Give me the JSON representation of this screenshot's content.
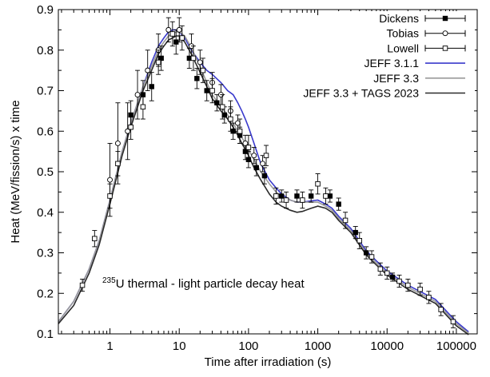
{
  "chart_data": {
    "type": "scatter",
    "xlabel": "Time after irradiation (s)",
    "ylabel": "Heat (MeV/fission/s) x time",
    "x_scale": "log",
    "xlim": [
      0.18,
      200000
    ],
    "ylim": [
      0.1,
      0.9
    ],
    "x_ticks": [
      1,
      10,
      100,
      1000,
      10000,
      100000
    ],
    "x_tick_labels": [
      "1",
      "10",
      "100",
      "1000",
      "10000",
      "100000"
    ],
    "y_ticks": [
      0.1,
      0.2,
      0.3,
      0.4,
      0.5,
      0.6,
      0.7,
      0.8,
      0.9
    ],
    "y_tick_labels": [
      "0.1",
      "0.2",
      "0.3",
      "0.4",
      "0.5",
      "0.6",
      "0.7",
      "0.8",
      "0.9"
    ],
    "grid": false,
    "legend_position": "top-right",
    "annotation": {
      "superscript": "235",
      "text": "U thermal  - light particle decay heat"
    },
    "colors": {
      "jeff311": "#3a3acc",
      "jeff33": "#9a9a9a",
      "jeff33_tags": "#2b2b2b",
      "markers": "#000000"
    },
    "series": [
      {
        "name": "Dickens",
        "kind": "points",
        "marker": "filled-square",
        "points": [
          {
            "x": 2.0,
            "y": 0.64,
            "err": 0.035
          },
          {
            "x": 3.0,
            "y": 0.69,
            "err": 0.035
          },
          {
            "x": 4.0,
            "y": 0.71,
            "err": 0.035
          },
          {
            "x": 5.5,
            "y": 0.78,
            "err": 0.03
          },
          {
            "x": 9.0,
            "y": 0.82,
            "err": 0.03
          },
          {
            "x": 14,
            "y": 0.78,
            "err": 0.025
          },
          {
            "x": 18,
            "y": 0.73,
            "err": 0.025
          },
          {
            "x": 25,
            "y": 0.7,
            "err": 0.025
          },
          {
            "x": 35,
            "y": 0.67,
            "err": 0.02
          },
          {
            "x": 45,
            "y": 0.64,
            "err": 0.02
          },
          {
            "x": 60,
            "y": 0.6,
            "err": 0.02
          },
          {
            "x": 75,
            "y": 0.59,
            "err": 0.02
          },
          {
            "x": 90,
            "y": 0.55,
            "err": 0.02
          },
          {
            "x": 100,
            "y": 0.53,
            "err": 0.02
          },
          {
            "x": 130,
            "y": 0.51,
            "err": 0.02
          },
          {
            "x": 170,
            "y": 0.49,
            "err": 0.02
          },
          {
            "x": 300,
            "y": 0.44,
            "err": 0.015
          },
          {
            "x": 500,
            "y": 0.44,
            "err": 0.015
          },
          {
            "x": 800,
            "y": 0.44,
            "err": 0.015
          },
          {
            "x": 1500,
            "y": 0.44,
            "err": 0.015
          },
          {
            "x": 2000,
            "y": 0.42,
            "err": 0.015
          },
          {
            "x": 3500,
            "y": 0.35,
            "err": 0.015
          },
          {
            "x": 5000,
            "y": 0.3,
            "err": 0.015
          },
          {
            "x": 12000,
            "y": 0.24,
            "err": 0.01
          }
        ]
      },
      {
        "name": "Tobias",
        "kind": "points",
        "marker": "open-circle",
        "points": [
          {
            "x": 1.0,
            "y": 0.48,
            "err": 0.09
          },
          {
            "x": 1.3,
            "y": 0.57,
            "err": 0.1
          },
          {
            "x": 1.8,
            "y": 0.6,
            "err": 0.07
          },
          {
            "x": 2.5,
            "y": 0.69,
            "err": 0.06
          },
          {
            "x": 3.5,
            "y": 0.75,
            "err": 0.05
          },
          {
            "x": 5.0,
            "y": 0.8,
            "err": 0.04
          },
          {
            "x": 7.0,
            "y": 0.85,
            "err": 0.03
          },
          {
            "x": 10,
            "y": 0.85,
            "err": 0.03
          },
          {
            "x": 15,
            "y": 0.81,
            "err": 0.03
          },
          {
            "x": 20,
            "y": 0.77,
            "err": 0.03
          },
          {
            "x": 30,
            "y": 0.72,
            "err": 0.025
          },
          {
            "x": 40,
            "y": 0.69,
            "err": 0.025
          },
          {
            "x": 55,
            "y": 0.65,
            "err": 0.025
          },
          {
            "x": 70,
            "y": 0.62,
            "err": 0.02
          },
          {
            "x": 90,
            "y": 0.57,
            "err": 0.02
          },
          {
            "x": 120,
            "y": 0.54,
            "err": 0.02
          },
          {
            "x": 160,
            "y": 0.52,
            "err": 0.02
          }
        ]
      },
      {
        "name": "Lowell",
        "kind": "points",
        "marker": "open-square",
        "points": [
          {
            "x": 0.4,
            "y": 0.22,
            "err": 0.015
          },
          {
            "x": 0.6,
            "y": 0.335,
            "err": 0.02
          },
          {
            "x": 1.0,
            "y": 0.44,
            "err": 0.03
          },
          {
            "x": 1.3,
            "y": 0.52,
            "err": 0.03
          },
          {
            "x": 2.0,
            "y": 0.61,
            "err": 0.03
          },
          {
            "x": 3.0,
            "y": 0.66,
            "err": 0.03
          },
          {
            "x": 5.0,
            "y": 0.77,
            "err": 0.03
          },
          {
            "x": 8.0,
            "y": 0.84,
            "err": 0.03
          },
          {
            "x": 11,
            "y": 0.83,
            "err": 0.03
          },
          {
            "x": 16,
            "y": 0.78,
            "err": 0.03
          },
          {
            "x": 22,
            "y": 0.75,
            "err": 0.03
          },
          {
            "x": 30,
            "y": 0.7,
            "err": 0.03
          },
          {
            "x": 42,
            "y": 0.66,
            "err": 0.03
          },
          {
            "x": 55,
            "y": 0.63,
            "err": 0.03
          },
          {
            "x": 75,
            "y": 0.6,
            "err": 0.03
          },
          {
            "x": 100,
            "y": 0.56,
            "err": 0.03
          },
          {
            "x": 180,
            "y": 0.54,
            "err": 0.025
          },
          {
            "x": 250,
            "y": 0.44,
            "err": 0.02
          },
          {
            "x": 350,
            "y": 0.43,
            "err": 0.02
          },
          {
            "x": 600,
            "y": 0.43,
            "err": 0.02
          },
          {
            "x": 1000,
            "y": 0.47,
            "err": 0.025
          },
          {
            "x": 1300,
            "y": 0.44,
            "err": 0.02
          },
          {
            "x": 2500,
            "y": 0.38,
            "err": 0.02
          },
          {
            "x": 4000,
            "y": 0.33,
            "err": 0.02
          },
          {
            "x": 6000,
            "y": 0.29,
            "err": 0.015
          },
          {
            "x": 8000,
            "y": 0.26,
            "err": 0.015
          },
          {
            "x": 10000,
            "y": 0.25,
            "err": 0.015
          },
          {
            "x": 15000,
            "y": 0.23,
            "err": 0.015
          },
          {
            "x": 20000,
            "y": 0.22,
            "err": 0.015
          },
          {
            "x": 30000,
            "y": 0.21,
            "err": 0.015
          },
          {
            "x": 40000,
            "y": 0.19,
            "err": 0.015
          },
          {
            "x": 60000,
            "y": 0.16,
            "err": 0.015
          },
          {
            "x": 90000,
            "y": 0.13,
            "err": 0.015
          }
        ]
      },
      {
        "name": "JEFF 3.1.1",
        "kind": "line",
        "x": [
          0.18,
          0.3,
          0.5,
          0.7,
          1,
          1.5,
          2,
          3,
          4,
          5,
          6,
          7,
          8,
          9,
          10,
          12,
          15,
          20,
          25,
          30,
          40,
          50,
          60,
          70,
          80,
          90,
          100,
          120,
          150,
          200,
          250,
          300,
          400,
          500,
          600,
          800,
          1000,
          1300,
          1600,
          2000,
          3000,
          5000,
          7000,
          10000,
          20000,
          50000,
          100000,
          150000
        ],
        "y": [
          0.13,
          0.18,
          0.26,
          0.33,
          0.43,
          0.55,
          0.62,
          0.71,
          0.77,
          0.81,
          0.83,
          0.845,
          0.85,
          0.85,
          0.845,
          0.83,
          0.8,
          0.77,
          0.75,
          0.74,
          0.72,
          0.7,
          0.69,
          0.67,
          0.65,
          0.63,
          0.61,
          0.57,
          0.52,
          0.48,
          0.46,
          0.445,
          0.43,
          0.425,
          0.425,
          0.428,
          0.43,
          0.42,
          0.41,
          0.39,
          0.36,
          0.305,
          0.28,
          0.255,
          0.22,
          0.185,
          0.13,
          0.105
        ]
      },
      {
        "name": "JEFF 3.3",
        "kind": "line",
        "x": [
          0.18,
          0.3,
          0.5,
          0.7,
          1,
          1.5,
          2,
          3,
          4,
          5,
          6,
          7,
          8,
          9,
          10,
          12,
          15,
          20,
          25,
          30,
          40,
          50,
          60,
          70,
          80,
          90,
          100,
          120,
          150,
          200,
          250,
          300,
          400,
          500,
          600,
          800,
          1000,
          1300,
          1600,
          2000,
          3000,
          5000,
          7000,
          10000,
          20000,
          50000,
          100000,
          150000
        ],
        "y": [
          0.13,
          0.18,
          0.26,
          0.33,
          0.43,
          0.55,
          0.62,
          0.71,
          0.76,
          0.8,
          0.82,
          0.835,
          0.84,
          0.845,
          0.845,
          0.835,
          0.805,
          0.76,
          0.72,
          0.69,
          0.66,
          0.64,
          0.62,
          0.6,
          0.585,
          0.57,
          0.555,
          0.53,
          0.5,
          0.47,
          0.45,
          0.44,
          0.43,
          0.425,
          0.425,
          0.425,
          0.425,
          0.415,
          0.405,
          0.385,
          0.355,
          0.3,
          0.275,
          0.25,
          0.215,
          0.18,
          0.125,
          0.102
        ]
      },
      {
        "name": "JEFF 3.3 + TAGS 2023",
        "kind": "line",
        "x": [
          0.18,
          0.3,
          0.5,
          0.7,
          1,
          1.5,
          2,
          3,
          4,
          5,
          6,
          7,
          8,
          9,
          10,
          12,
          15,
          20,
          25,
          30,
          40,
          50,
          60,
          70,
          80,
          90,
          100,
          120,
          150,
          200,
          250,
          300,
          400,
          500,
          600,
          800,
          1000,
          1300,
          1600,
          2000,
          3000,
          5000,
          7000,
          10000,
          20000,
          50000,
          100000,
          150000
        ],
        "y": [
          0.125,
          0.17,
          0.25,
          0.32,
          0.42,
          0.54,
          0.61,
          0.7,
          0.75,
          0.79,
          0.81,
          0.825,
          0.83,
          0.835,
          0.835,
          0.82,
          0.79,
          0.745,
          0.71,
          0.68,
          0.65,
          0.63,
          0.61,
          0.59,
          0.57,
          0.555,
          0.54,
          0.51,
          0.48,
          0.445,
          0.425,
          0.415,
          0.405,
          0.4,
          0.402,
          0.41,
          0.415,
          0.41,
          0.4,
          0.38,
          0.35,
          0.295,
          0.27,
          0.245,
          0.21,
          0.175,
          0.12,
          0.098
        ]
      }
    ]
  }
}
